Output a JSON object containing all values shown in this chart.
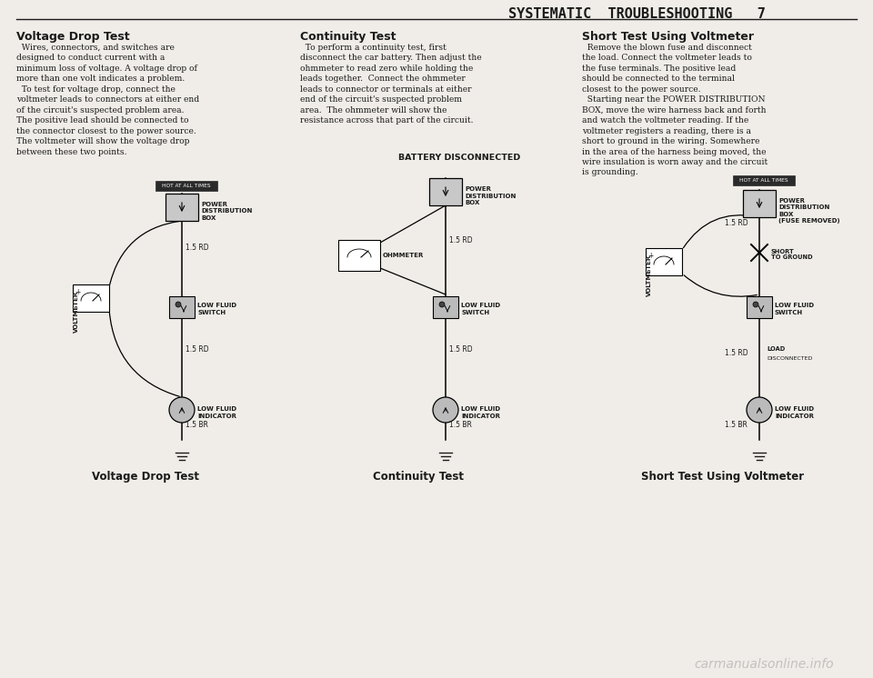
{
  "bg_color": "#f0ede8",
  "text_color": "#1a1a1a",
  "header_title": "SYSTEMATIC  TROUBLESHOOTING   7",
  "col1_title": "Voltage Drop Test",
  "col2_title": "Continuity Test",
  "col3_title": "Short Test Using Voltmeter",
  "col1_text": "  Wires, connectors, and switches are\ndesigned to conduct current with a\nminimum loss of voltage. A voltage drop of\nmore than one volt indicates a problem.\n  To test for voltage drop, connect the\nvoltmeter leads to connectors at either end\nof the circuit's suspected problem area.\nThe positive lead should be connected to\nthe connector closest to the power source.\nThe voltmeter will show the voltage drop\nbetween these two points.",
  "col2_text": "  To perform a continuity test, first\ndisconnect the car battery. Then adjust the\nohmmeter to read zero while holding the\nleads together.  Connect the ohmmeter\nleads to connector or terminals at either\nend of the circuit's suspected problem\narea.  The ohmmeter will show the\nresistance across that part of the circuit.",
  "col3_text": "  Remove the blown fuse and disconnect\nthe load. Connect the voltmeter leads to\nthe fuse terminals. The positive lead\nshould be connected to the terminal\nclosest to the power source.\n  Starting near the POWER DISTRIBUTION\nBOX, move the wire harness back and forth\nand watch the voltmeter reading. If the\nvoltmeter registers a reading, there is a\nshort to ground in the wiring. Somewhere\nin the area of the harness being moved, the\nwire insulation is worn away and the circuit\nis grounding.",
  "col1_footer": "Voltage Drop Test",
  "col2_footer": "Continuity Test",
  "col3_footer": "Short Test Using Voltmeter",
  "watermark": "carmanualsonline.info"
}
